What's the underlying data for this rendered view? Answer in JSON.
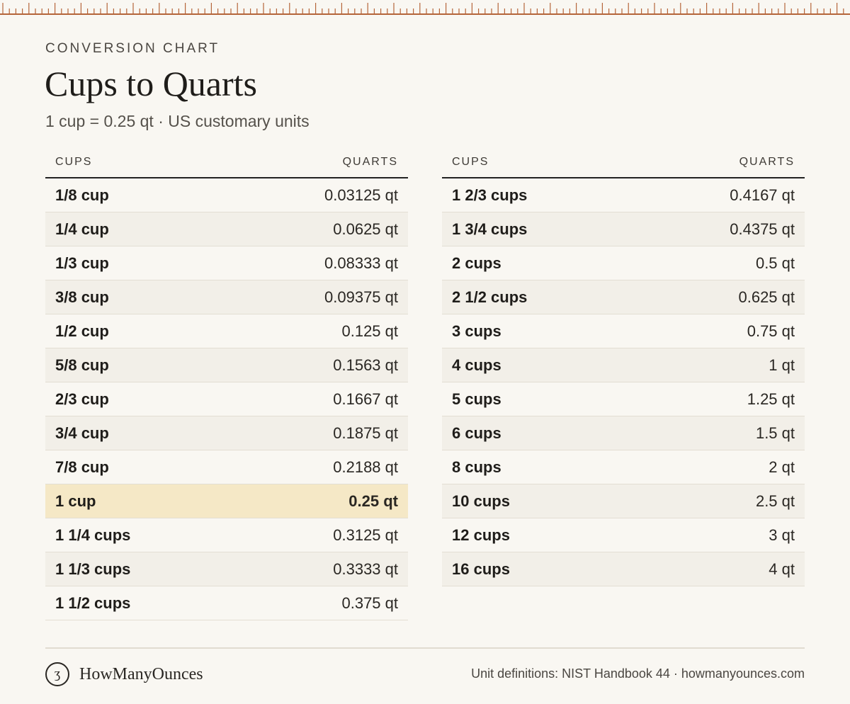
{
  "ruler": {
    "color": "#b5653a"
  },
  "header": {
    "eyebrow": "CONVERSION CHART",
    "title": "Cups to Quarts",
    "subtitle": "1 cup = 0.25 qt · US customary units"
  },
  "table_headers": {
    "cups": "CUPS",
    "quarts": "QUARTS"
  },
  "highlight_color": "#f5e8c6",
  "left_rows": [
    {
      "cups": "1/8 cup",
      "quarts": "0.03125 qt"
    },
    {
      "cups": "1/4 cup",
      "quarts": "0.0625 qt"
    },
    {
      "cups": "1/3 cup",
      "quarts": "0.08333 qt"
    },
    {
      "cups": "3/8 cup",
      "quarts": "0.09375 qt"
    },
    {
      "cups": "1/2 cup",
      "quarts": "0.125 qt"
    },
    {
      "cups": "5/8 cup",
      "quarts": "0.1563 qt"
    },
    {
      "cups": "2/3 cup",
      "quarts": "0.1667 qt"
    },
    {
      "cups": "3/4 cup",
      "quarts": "0.1875 qt"
    },
    {
      "cups": "7/8 cup",
      "quarts": "0.2188 qt"
    },
    {
      "cups": "1 cup",
      "quarts": "0.25 qt",
      "highlight": true
    },
    {
      "cups": "1 1/4 cups",
      "quarts": "0.3125 qt"
    },
    {
      "cups": "1 1/3 cups",
      "quarts": "0.3333 qt"
    },
    {
      "cups": "1 1/2 cups",
      "quarts": "0.375 qt"
    }
  ],
  "right_rows": [
    {
      "cups": "1 2/3 cups",
      "quarts": "0.4167 qt"
    },
    {
      "cups": "1 3/4 cups",
      "quarts": "0.4375 qt"
    },
    {
      "cups": "2 cups",
      "quarts": "0.5 qt"
    },
    {
      "cups": "2 1/2 cups",
      "quarts": "0.625 qt"
    },
    {
      "cups": "3 cups",
      "quarts": "0.75 qt"
    },
    {
      "cups": "4 cups",
      "quarts": "1 qt"
    },
    {
      "cups": "5 cups",
      "quarts": "1.25 qt"
    },
    {
      "cups": "6 cups",
      "quarts": "1.5 qt"
    },
    {
      "cups": "8 cups",
      "quarts": "2 qt"
    },
    {
      "cups": "10 cups",
      "quarts": "2.5 qt"
    },
    {
      "cups": "12 cups",
      "quarts": "3 qt"
    },
    {
      "cups": "16 cups",
      "quarts": "4 qt"
    }
  ],
  "footer": {
    "brand_icon": "ʒ",
    "brand_icon_name": "ounce-symbol-icon",
    "brand_name": "HowManyOunces",
    "credit": "Unit definitions: NIST Handbook 44 · howmanyounces.com"
  }
}
